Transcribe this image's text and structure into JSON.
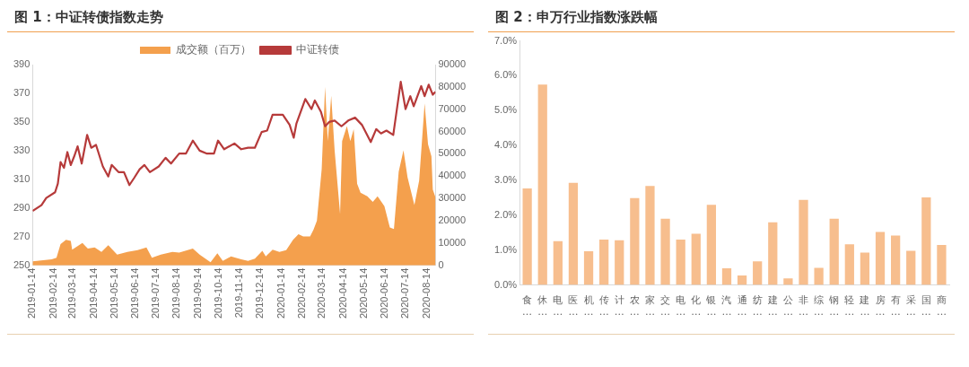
{
  "chart_data": [
    {
      "type": "line",
      "title": "图 1：中证转债指数走势",
      "legend": "top",
      "grid": false,
      "marker": "none",
      "line_style": "solid",
      "xlim": [
        "2019-01-14",
        "2020-08-27"
      ],
      "xticks": [
        "2019-01-14",
        "2019-02-14",
        "2019-03-14",
        "2019-04-14",
        "2019-05-14",
        "2019-06-14",
        "2019-07-14",
        "2019-08-14",
        "2019-09-14",
        "2019-10-14",
        "2019-11-14",
        "2019-12-14",
        "2020-01-14",
        "2020-02-14",
        "2020-03-14",
        "2020-04-14",
        "2020-05-14",
        "2020-06-14",
        "2020-07-14",
        "2020-08-14"
      ],
      "ylim": [
        250,
        390
      ],
      "yticks": [
        250,
        270,
        290,
        310,
        330,
        350,
        370,
        390
      ],
      "y2lim": [
        0,
        90000
      ],
      "y2ticks": [
        0,
        10000,
        20000,
        30000,
        40000,
        50000,
        60000,
        70000,
        80000,
        90000
      ],
      "series": [
        {
          "name": "成交额（百万）",
          "type": "area",
          "axis": "y2",
          "color": "#f4a04d",
          "x": [
            "2019-01-14",
            "2019-02-11",
            "2019-02-18",
            "2019-02-24",
            "2019-03-04",
            "2019-03-11",
            "2019-03-13",
            "2019-03-28",
            "2019-04-05",
            "2019-04-15",
            "2019-04-25",
            "2019-05-05",
            "2019-05-18",
            "2019-06-02",
            "2019-06-17",
            "2019-06-30",
            "2019-07-08",
            "2019-07-21",
            "2019-08-07",
            "2019-08-17",
            "2019-09-06",
            "2019-09-16",
            "2019-10-02",
            "2019-10-12",
            "2019-10-20",
            "2019-11-01",
            "2019-11-16",
            "2019-11-26",
            "2019-12-06",
            "2019-12-17",
            "2019-12-22",
            "2020-01-01",
            "2020-01-11",
            "2020-01-21",
            "2020-01-31",
            "2020-02-08",
            "2020-02-15",
            "2020-02-25",
            "2020-03-01",
            "2020-03-06",
            "2020-03-13",
            "2020-03-18",
            "2020-03-22",
            "2020-03-27",
            "2020-04-01",
            "2020-04-09",
            "2020-04-12",
            "2020-04-19",
            "2020-04-24",
            "2020-04-29",
            "2020-05-04",
            "2020-05-09",
            "2020-05-19",
            "2020-05-27",
            "2020-06-03",
            "2020-06-13",
            "2020-06-21",
            "2020-06-27",
            "2020-07-04",
            "2020-07-11",
            "2020-07-17",
            "2020-07-27",
            "2020-08-03",
            "2020-08-11",
            "2020-08-16",
            "2020-08-21",
            "2020-08-23",
            "2020-08-27"
          ],
          "values": [
            1800,
            2700,
            3400,
            9500,
            11500,
            11000,
            7000,
            10000,
            7500,
            8000,
            6000,
            9000,
            4800,
            6000,
            6800,
            8000,
            3400,
            4800,
            6000,
            5700,
            7500,
            4800,
            1400,
            5400,
            2000,
            4000,
            2700,
            2000,
            3000,
            6500,
            4000,
            7000,
            6000,
            6800,
            11500,
            14000,
            13000,
            13000,
            16000,
            20000,
            43000,
            80000,
            55700,
            76000,
            51600,
            23000,
            55700,
            62400,
            55700,
            61000,
            36600,
            32600,
            31000,
            28500,
            31000,
            26500,
            17000,
            16300,
            42000,
            51600,
            39400,
            27000,
            38000,
            72600,
            54300,
            48900,
            34000,
            30500
          ]
        },
        {
          "name": "中证转债",
          "type": "line",
          "axis": "y",
          "color": "#b63a3a",
          "x": [
            "2019-01-14",
            "2019-01-27",
            "2019-02-03",
            "2019-02-16",
            "2019-02-20",
            "2019-02-24",
            "2019-03-01",
            "2019-03-06",
            "2019-03-11",
            "2019-03-16",
            "2019-03-21",
            "2019-03-27",
            "2019-04-04",
            "2019-04-10",
            "2019-04-17",
            "2019-04-27",
            "2019-05-05",
            "2019-05-10",
            "2019-05-20",
            "2019-05-28",
            "2019-06-05",
            "2019-06-12",
            "2019-06-20",
            "2019-06-27",
            "2019-07-05",
            "2019-07-18",
            "2019-07-28",
            "2019-08-05",
            "2019-08-17",
            "2019-08-27",
            "2019-09-06",
            "2019-09-16",
            "2019-09-26",
            "2019-10-07",
            "2019-10-13",
            "2019-10-22",
            "2019-11-06",
            "2019-11-16",
            "2019-11-26",
            "2019-12-06",
            "2019-12-16",
            "2019-12-24",
            "2020-01-01",
            "2020-01-16",
            "2020-01-26",
            "2020-02-01",
            "2020-02-05",
            "2020-02-18",
            "2020-02-27",
            "2020-03-03",
            "2020-03-12",
            "2020-03-18",
            "2020-03-24",
            "2020-04-01",
            "2020-04-11",
            "2020-04-21",
            "2020-05-01",
            "2020-05-11",
            "2020-05-24",
            "2020-06-01",
            "2020-06-08",
            "2020-06-16",
            "2020-06-26",
            "2020-07-07",
            "2020-07-14",
            "2020-07-21",
            "2020-07-26",
            "2020-08-06",
            "2020-08-11",
            "2020-08-17",
            "2020-08-23",
            "2020-08-27"
          ],
          "values": [
            288,
            292,
            297,
            301,
            307,
            322,
            318,
            329,
            320,
            326,
            333,
            321,
            341,
            332,
            334,
            319,
            312,
            320,
            315,
            315,
            306,
            311,
            317,
            320,
            315,
            319,
            325,
            321,
            328,
            328,
            337,
            330,
            328,
            328,
            337,
            331,
            335,
            331,
            332,
            332,
            343,
            344,
            355,
            355,
            348,
            339,
            349,
            366,
            359,
            365,
            357,
            347,
            350,
            351,
            347,
            351,
            353,
            348,
            336,
            345,
            342,
            344,
            341,
            378,
            359,
            368,
            361,
            375,
            368,
            376,
            369,
            371
          ]
        }
      ]
    },
    {
      "type": "bar",
      "title": "图 2：申万行业指数涨跌幅",
      "grid": false,
      "color": "#f7be8e",
      "categories": [
        "食…",
        "休…",
        "电…",
        "医…",
        "机…",
        "传…",
        "计…",
        "农…",
        "家…",
        "交…",
        "电…",
        "化…",
        "银…",
        "汽…",
        "通…",
        "纺…",
        "建…",
        "公…",
        "非…",
        "综…",
        "钢…",
        "轻…",
        "建…",
        "房…",
        "有…",
        "采…",
        "国…",
        "商…"
      ],
      "values": [
        2.77,
        5.75,
        1.26,
        2.93,
        0.97,
        1.3,
        1.28,
        2.49,
        2.84,
        1.9,
        1.3,
        1.47,
        2.3,
        0.48,
        0.27,
        0.68,
        1.8,
        0.19,
        2.44,
        0.49,
        1.9,
        1.17,
        0.93,
        1.52,
        1.42,
        0.98,
        2.51,
        1.15
      ],
      "ylim": [
        0,
        7
      ],
      "yticks": [
        {
          "value": 0,
          "label": "0.0%"
        },
        {
          "value": 1,
          "label": "1.0%"
        },
        {
          "value": 2,
          "label": "2.0%"
        },
        {
          "value": 3,
          "label": "3.0%"
        },
        {
          "value": 4,
          "label": "4.0%"
        },
        {
          "value": 5,
          "label": "5.0%"
        },
        {
          "value": 6,
          "label": "6.0%"
        },
        {
          "value": 7,
          "label": "7.0%"
        }
      ]
    }
  ]
}
